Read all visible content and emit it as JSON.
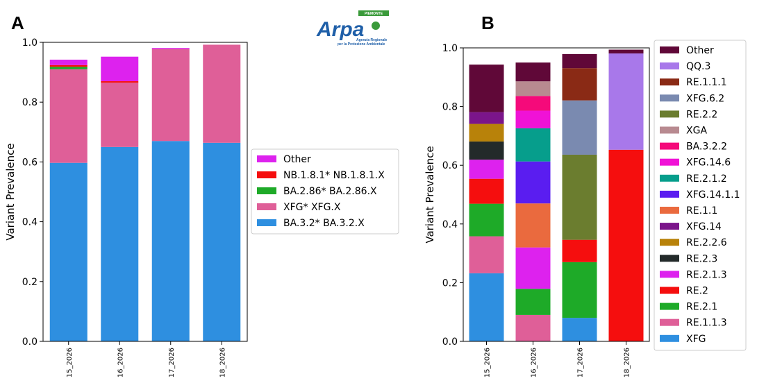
{
  "figure": {
    "panel_a_label": "A",
    "panel_b_label": "B",
    "logo": {
      "text": "Arpa",
      "region": "PIEMONTE",
      "subtitle_1": "Agenzia Regionale",
      "subtitle_2": "per la Protezione Ambientale",
      "colors": {
        "blue": "#1f5fa8",
        "green": "#3a9a3a"
      }
    }
  },
  "chart_data": [
    {
      "panel": "A",
      "type": "bar",
      "stacked": true,
      "categories": [
        "15_2026",
        "16_2026",
        "17_2026",
        "18_2026"
      ],
      "ylabel": "Variant Prevalence",
      "ylim": [
        0,
        1.0
      ],
      "yticks": [
        "0.0",
        "0.2",
        "0.4",
        "0.6",
        "0.8",
        "1.0"
      ],
      "legend_position": "right",
      "series": [
        {
          "name": "BA.3.2* BA.3.2.X",
          "color": "#2e8fe0",
          "values": [
            0.597,
            0.65,
            0.67,
            0.664
          ]
        },
        {
          "name": "XFG* XFG.X",
          "color": "#df5f98",
          "values": [
            0.313,
            0.215,
            0.308,
            0.328
          ]
        },
        {
          "name": "BA.2.86* BA.2.86.X",
          "color": "#1eaa28",
          "values": [
            0.008,
            0.0,
            0.0,
            0.0
          ]
        },
        {
          "name": "NB.1.8.1* NB.1.8.1.X",
          "color": "#f50e0e",
          "values": [
            0.006,
            0.005,
            0.0,
            0.0
          ]
        },
        {
          "name": "Other",
          "color": "#dd22ee",
          "values": [
            0.018,
            0.082,
            0.003,
            0.0
          ]
        }
      ]
    },
    {
      "panel": "B",
      "type": "bar",
      "stacked": true,
      "categories": [
        "15_2026",
        "16_2026",
        "17_2026",
        "18_2026"
      ],
      "ylabel": "Variant Prevalence",
      "ylim": [
        0,
        1.0
      ],
      "yticks": [
        "0.0",
        "0.2",
        "0.4",
        "0.6",
        "0.8",
        "1.0"
      ],
      "legend_position": "right",
      "series": [
        {
          "name": "XFG",
          "color": "#2e8fe0",
          "values": [
            0.232,
            0.0,
            0.08,
            0.0
          ]
        },
        {
          "name": "RE.1.1.3",
          "color": "#df5f98",
          "values": [
            0.126,
            0.09,
            0.0,
            0.0
          ]
        },
        {
          "name": "RE.2.1",
          "color": "#1eaa28",
          "values": [
            0.111,
            0.089,
            0.19,
            0.0
          ]
        },
        {
          "name": "RE.2",
          "color": "#f50e0e",
          "values": [
            0.085,
            0.0,
            0.076,
            0.653
          ]
        },
        {
          "name": "RE.2.1.3",
          "color": "#dd22ee",
          "values": [
            0.065,
            0.141,
            0.0,
            0.0
          ]
        },
        {
          "name": "RE.2.3",
          "color": "#232a2a",
          "values": [
            0.062,
            0.0,
            0.0,
            0.0
          ]
        },
        {
          "name": "RE.2.2.6",
          "color": "#b8820a",
          "values": [
            0.06,
            0.0,
            0.0,
            0.0
          ]
        },
        {
          "name": "XFG.14",
          "color": "#7b158a",
          "values": [
            0.04,
            0.0,
            0.0,
            0.0
          ]
        },
        {
          "name": "RE.1.1",
          "color": "#ea6a3e",
          "values": [
            0.0,
            0.15,
            0.0,
            0.0
          ]
        },
        {
          "name": "XFG.14.1.1",
          "color": "#5a1df0",
          "values": [
            0.0,
            0.143,
            0.0,
            0.0
          ]
        },
        {
          "name": "RE.2.1.2",
          "color": "#069e8c",
          "values": [
            0.0,
            0.113,
            0.0,
            0.0
          ]
        },
        {
          "name": "XFG.14.6",
          "color": "#f012d6",
          "values": [
            0.0,
            0.06,
            0.0,
            0.0
          ]
        },
        {
          "name": "BA.3.2.2",
          "color": "#f50a7a",
          "values": [
            0.0,
            0.05,
            0.0,
            0.0
          ]
        },
        {
          "name": "XGA",
          "color": "#b88a90",
          "values": [
            0.0,
            0.05,
            0.0,
            0.0
          ]
        },
        {
          "name": "RE.2.2",
          "color": "#6b7d2f",
          "values": [
            0.0,
            0.0,
            0.29,
            0.0
          ]
        },
        {
          "name": "XFG.6.2",
          "color": "#7a8ab0",
          "values": [
            0.0,
            0.0,
            0.185,
            0.0
          ]
        },
        {
          "name": "RE.1.1.1",
          "color": "#8a2a15",
          "values": [
            0.0,
            0.0,
            0.11,
            0.0
          ]
        },
        {
          "name": "QQ.3",
          "color": "#a878ea",
          "values": [
            0.0,
            0.0,
            0.0,
            0.328
          ]
        },
        {
          "name": "Other",
          "color": "#600838",
          "values": [
            0.162,
            0.064,
            0.048,
            0.013
          ]
        }
      ]
    }
  ]
}
